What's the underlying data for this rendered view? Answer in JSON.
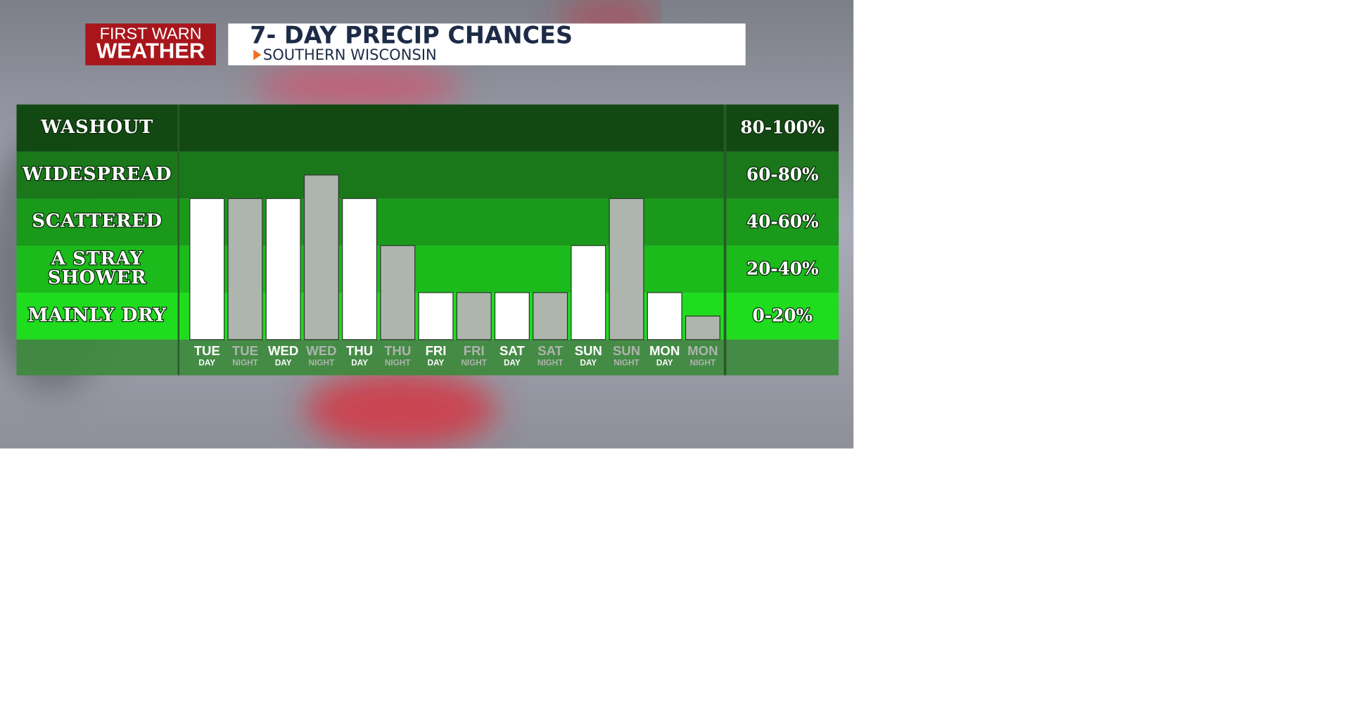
{
  "logo": {
    "line1": "FIRST WARN",
    "line2": "WEATHER"
  },
  "chart_data": {
    "type": "bar",
    "title": "7- DAY PRECIP CHANCES",
    "subtitle": "SOUTHERN WISCONSIN",
    "categories": [
      "TUE",
      "TUE",
      "WED",
      "WED",
      "THU",
      "THU",
      "FRI",
      "FRI",
      "SAT",
      "SAT",
      "SUN",
      "SUN",
      "MON",
      "MON"
    ],
    "periods": [
      "DAY",
      "NIGHT",
      "DAY",
      "NIGHT",
      "DAY",
      "NIGHT",
      "DAY",
      "NIGHT",
      "DAY",
      "NIGHT",
      "DAY",
      "NIGHT",
      "DAY",
      "NIGHT"
    ],
    "values": [
      60,
      60,
      60,
      70,
      60,
      40,
      20,
      20,
      20,
      20,
      40,
      60,
      20,
      10
    ],
    "colors": [
      "#ffffff",
      "#aeb4ae",
      "#ffffff",
      "#aeb4ae",
      "#ffffff",
      "#aeb4ae",
      "#ffffff",
      "#aeb4ae",
      "#ffffff",
      "#aeb4ae",
      "#ffffff",
      "#aeb4ae",
      "#ffffff",
      "#aeb4ae"
    ],
    "ylim": [
      0,
      100
    ],
    "bands": [
      {
        "from": 0,
        "to": 20,
        "label": [
          "MAINLY DRY"
        ],
        "range": "0-20%",
        "color": "#1fdc1f"
      },
      {
        "from": 20,
        "to": 40,
        "label": [
          "A STRAY",
          "SHOWER"
        ],
        "range": "20-40%",
        "color": "#1bbb1b"
      },
      {
        "from": 40,
        "to": 60,
        "label": [
          "SCATTERED"
        ],
        "range": "40-60%",
        "color": "#1a991a"
      },
      {
        "from": 60,
        "to": 80,
        "label": [
          "WIDESPREAD"
        ],
        "range": "60-80%",
        "color": "#1a781a"
      },
      {
        "from": 80,
        "to": 100,
        "label": [
          "WASHOUT"
        ],
        "range": "80-100%",
        "color": "#124912"
      }
    ]
  }
}
